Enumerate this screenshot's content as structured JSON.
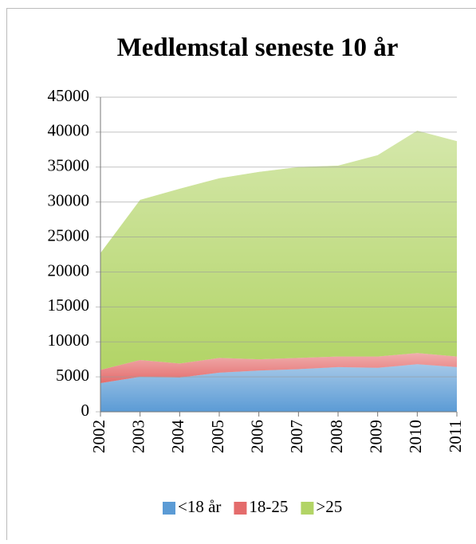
{
  "chart_data": {
    "type": "stacked_area",
    "title": "Medlemstal seneste 10 år",
    "categories": [
      "2002",
      "2003",
      "2004",
      "2005",
      "2006",
      "2007",
      "2008",
      "2009",
      "2010",
      "2011"
    ],
    "series": [
      {
        "name": "<18 år",
        "color": "#5b9bd5",
        "values": [
          4100,
          5000,
          4900,
          5600,
          5900,
          6100,
          6400,
          6300,
          6800,
          6400
        ]
      },
      {
        "name": "18-25",
        "color": "#e46c6c",
        "values": [
          1900,
          2400,
          2000,
          2100,
          1600,
          1600,
          1500,
          1600,
          1600,
          1500
        ]
      },
      {
        "name": ">25",
        "color": "#b2d466",
        "values": [
          16700,
          22900,
          25000,
          25700,
          26800,
          27300,
          27300,
          28800,
          31800,
          30800
        ]
      }
    ],
    "ylim": [
      0,
      45000
    ],
    "yticks": [
      0,
      5000,
      10000,
      15000,
      20000,
      25000,
      30000,
      35000,
      40000,
      45000
    ],
    "grid": true,
    "legend": "bottom"
  }
}
